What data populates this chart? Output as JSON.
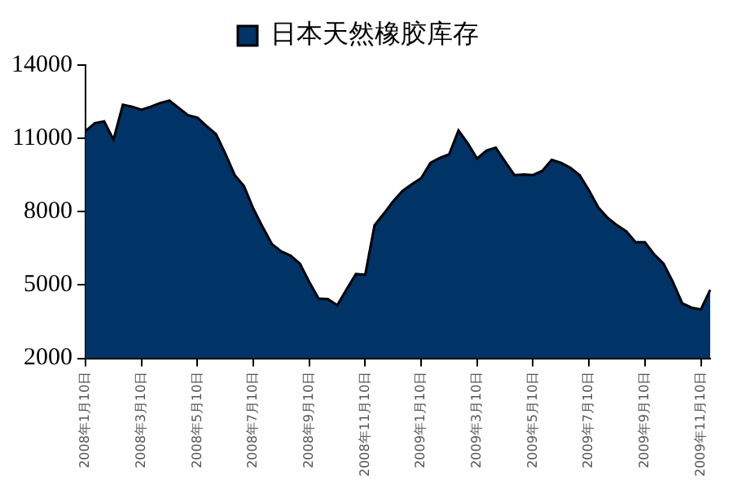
{
  "chart_data": {
    "type": "area",
    "categories": [
      "2008年1月10日",
      null,
      null,
      null,
      null,
      null,
      "2008年3月10日",
      null,
      null,
      null,
      null,
      null,
      "2008年5月10日",
      null,
      null,
      null,
      null,
      null,
      "2008年7月10日",
      null,
      null,
      null,
      null,
      null,
      "2008年9月10日",
      null,
      null,
      null,
      null,
      null,
      "2008年11月10日",
      null,
      null,
      null,
      null,
      null,
      "2009年1月10日",
      null,
      null,
      null,
      null,
      null,
      "2009年3月10日",
      null,
      null,
      null,
      null,
      null,
      "2009年5月10日",
      null,
      null,
      null,
      null,
      null,
      "2009年7月10日",
      null,
      null,
      null,
      null,
      null,
      "2009年9月10日",
      null,
      null,
      null,
      null,
      null,
      "2009年11月10日",
      null
    ],
    "series": [
      {
        "name": "日本天然橡胶库存",
        "color": "#003366",
        "values": [
          11300,
          11625,
          11700,
          10950,
          12375,
          12300,
          12175,
          12300,
          12450,
          12550,
          12250,
          11950,
          11850,
          11500,
          11175,
          10375,
          9500,
          9050,
          8125,
          7375,
          6675,
          6375,
          6200,
          5875,
          5125,
          4450,
          4425,
          4175,
          4825,
          5450,
          5425,
          7450,
          7925,
          8425,
          8850,
          9125,
          9375,
          10000,
          10200,
          10350,
          11325,
          10800,
          10175,
          10500,
          10625,
          10050,
          9500,
          9525,
          9500,
          9675,
          10125,
          10000,
          9800,
          9500,
          8875,
          8175,
          7750,
          7450,
          7200,
          6750,
          6750,
          6250,
          5875,
          5125,
          4250,
          4075,
          4000,
          4800
        ]
      }
    ],
    "ylim": [
      2000,
      14000
    ],
    "yticks": [
      2000,
      5000,
      8000,
      11000,
      14000
    ],
    "legend": "top"
  }
}
